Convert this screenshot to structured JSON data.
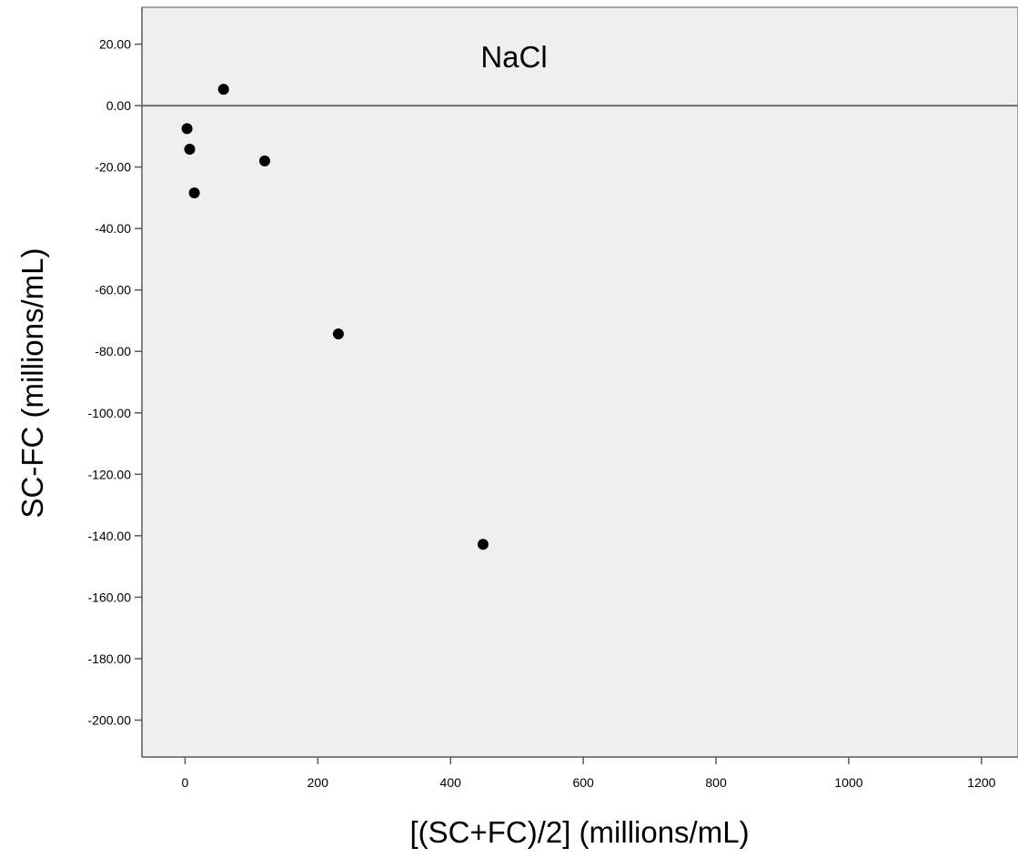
{
  "chart_data": {
    "type": "scatter",
    "title": "",
    "annotation": "NaCl",
    "xlabel": "[(SC+FC)/2] (millions/mL)",
    "ylabel": "SC-FC (millions/mL)",
    "xlim": [
      -65,
      1255
    ],
    "ylim": [
      -212,
      32
    ],
    "xticks": [
      0,
      200,
      400,
      600,
      800,
      1000,
      1200
    ],
    "xtick_labels": [
      "0",
      "200",
      "400",
      "600",
      "800",
      "1000",
      "1200"
    ],
    "yticks": [
      20,
      0,
      -20,
      -40,
      -60,
      -80,
      -100,
      -120,
      -140,
      -160,
      -180,
      -200
    ],
    "ytick_labels": [
      "20.00",
      "0.00",
      "-20.00",
      "-40.00",
      "-60.00",
      "-80.00",
      "-100.00",
      "-120.00",
      "-140.00",
      "-160.00",
      "-180.00",
      "-200.00"
    ],
    "reference_line_y": 0,
    "grid": false,
    "background_color": "#efefef",
    "marker_color": "#000000",
    "points": [
      {
        "x": 58,
        "y": 5.3
      },
      {
        "x": 3,
        "y": -7.5
      },
      {
        "x": 7,
        "y": -14.2
      },
      {
        "x": 120,
        "y": -18
      },
      {
        "x": 14,
        "y": -28.4
      },
      {
        "x": 231,
        "y": -74.3
      },
      {
        "x": 449,
        "y": -142.8
      }
    ]
  }
}
